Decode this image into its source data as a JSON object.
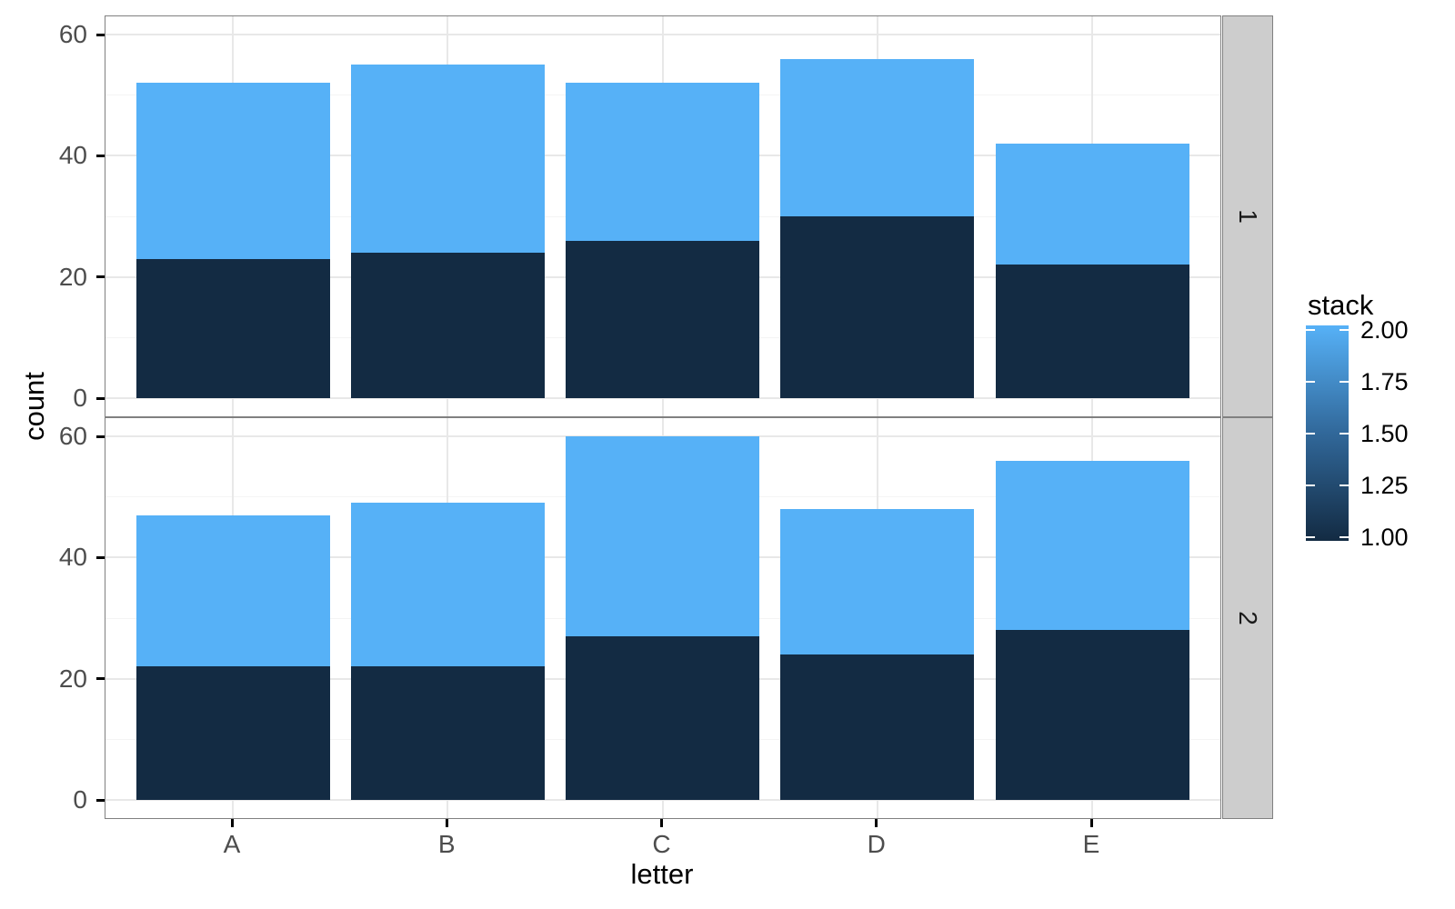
{
  "figure": {
    "background": "#FFFFFF",
    "panel_fill": "#FFFFFF",
    "panel_border": "#808080",
    "grid_major": "#E8E8E8",
    "grid_minor": "#F4F4F4",
    "strip_fill": "#CDCDCD",
    "strip_border": "#808080",
    "strip_text_color": "#1A1A1A",
    "tick_mark_color": "#000000",
    "tick_label_color": "#4D4D4D",
    "title_color": "#000000"
  },
  "chart_data": {
    "type": "bar",
    "stacked": true,
    "orientation": "vertical",
    "xlabel": "letter",
    "ylabel": "count",
    "categories": [
      "A",
      "B",
      "C",
      "D",
      "E"
    ],
    "facets": [
      {
        "label": "1",
        "series": [
          {
            "name": "stack 1.00",
            "color": "#132B43",
            "values": [
              23,
              24,
              26,
              30,
              22
            ]
          },
          {
            "name": "stack 2.00",
            "color": "#56B1F7",
            "values": [
              29,
              31,
              26,
              26,
              20
            ]
          }
        ]
      },
      {
        "label": "2",
        "series": [
          {
            "name": "stack 1.00",
            "color": "#132B43",
            "values": [
              22,
              22,
              27,
              24,
              28
            ]
          },
          {
            "name": "stack 2.00",
            "color": "#56B1F7",
            "values": [
              25,
              27,
              33,
              24,
              28
            ]
          }
        ]
      }
    ],
    "y_axis": {
      "ticks": [
        0,
        20,
        40,
        60
      ],
      "tick_labels": [
        "0",
        "20",
        "40",
        "60"
      ],
      "minor_ticks": [
        10,
        30,
        50
      ],
      "range": [
        -3,
        63
      ]
    },
    "legend": {
      "title": "stack",
      "type": "colorbar",
      "position": "right",
      "tick_labels": [
        "2.00",
        "1.75",
        "1.50",
        "1.25",
        "1.00"
      ],
      "tick_values": [
        2.0,
        1.75,
        1.5,
        1.25,
        1.0
      ],
      "high_color": "#56B1F7",
      "mid_color": "#31689A",
      "low_color": "#132B43"
    },
    "grid": true
  }
}
